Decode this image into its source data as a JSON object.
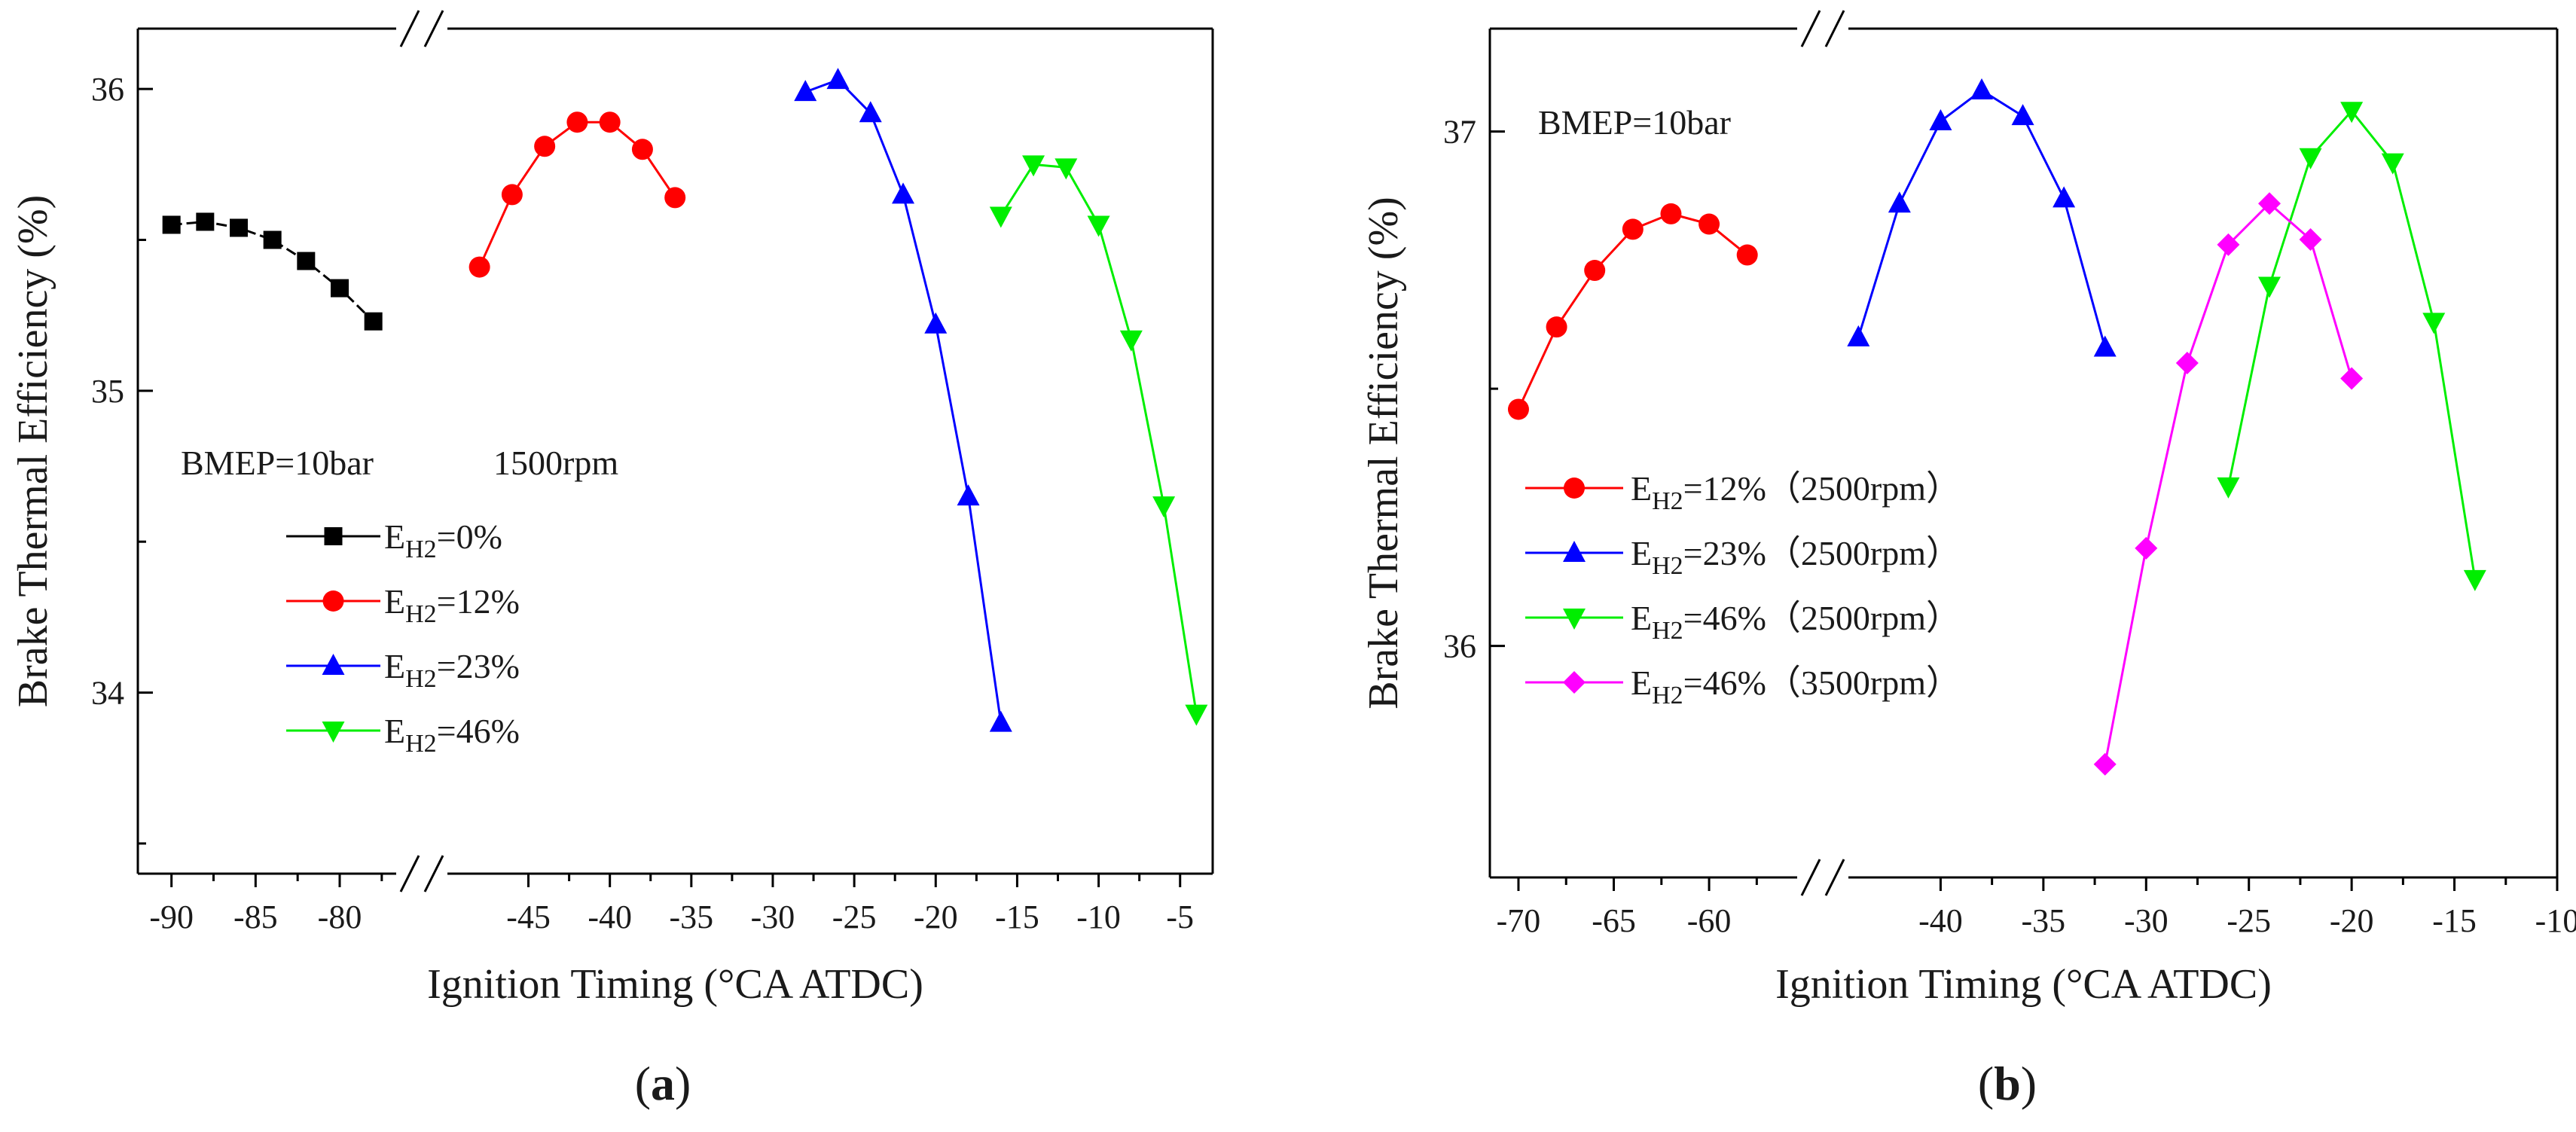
{
  "colors": {
    "black": "#000000",
    "red": "#ff0000",
    "blue": "#0000ff",
    "green": "#00ee00",
    "magenta": "#ff00ff"
  },
  "chart_data": [
    {
      "type": "line",
      "caption": "(a)",
      "caption_letter": "a",
      "xlabel": "Ignition Timing (°CA ATDC)",
      "ylabel": "Brake Thermal Efficiency (%)",
      "ylim": [
        33.4,
        36.2
      ],
      "yticks": [
        34,
        35,
        36
      ],
      "x_segments": [
        {
          "range": [
            -92,
            -77
          ],
          "ticks": [
            -90,
            -85,
            -80
          ]
        },
        {
          "range": [
            -49,
            -3
          ],
          "ticks": [
            -45,
            -40,
            -35,
            -30,
            -25,
            -20,
            -15,
            -10,
            -5
          ]
        }
      ],
      "annotations": {
        "bmep": "BMEP=10bar",
        "speed": "1500rpm"
      },
      "series": [
        {
          "name": "EH2=0%",
          "label_main": "E",
          "label_sub": "H2",
          "label_rest": "=0%",
          "color": "black",
          "marker": "square",
          "x": [
            -90,
            -88,
            -86,
            -84,
            -82,
            -80,
            -78
          ],
          "y": [
            35.55,
            35.56,
            35.54,
            35.5,
            35.43,
            35.34,
            35.23
          ]
        },
        {
          "name": "EH2=12%",
          "label_main": "E",
          "label_sub": "H2",
          "label_rest": "=12%",
          "color": "red",
          "marker": "circle",
          "x": [
            -48,
            -46,
            -44,
            -42,
            -40,
            -38,
            -36
          ],
          "y": [
            35.41,
            35.65,
            35.81,
            35.89,
            35.89,
            35.8,
            35.64
          ]
        },
        {
          "name": "EH2=23%",
          "label_main": "E",
          "label_sub": "H2",
          "label_rest": "=23%",
          "color": "blue",
          "marker": "triangle-up",
          "x": [
            -28,
            -26,
            -24,
            -22,
            -20,
            -18,
            -16
          ],
          "y": [
            35.99,
            36.03,
            35.92,
            35.65,
            35.22,
            34.65,
            33.9
          ]
        },
        {
          "name": "EH2=46%",
          "label_main": "E",
          "label_sub": "H2",
          "label_rest": "=46%",
          "color": "green",
          "marker": "triangle-down",
          "x": [
            -16,
            -14,
            -12,
            -10,
            -8,
            -6,
            -4
          ],
          "y": [
            35.58,
            35.75,
            35.74,
            35.55,
            35.17,
            34.62,
            33.93
          ]
        }
      ]
    },
    {
      "type": "line",
      "caption": "(b)",
      "caption_letter": "b",
      "xlabel": "Ignition Timing (°CA ATDC)",
      "ylabel": "Brake Thermal Efficiency (%)",
      "ylim": [
        35.55,
        37.2
      ],
      "yticks": [
        36,
        37
      ],
      "x_segments": [
        {
          "range": [
            -71.5,
            -57
          ],
          "ticks": [
            -70,
            -65,
            -60
          ]
        },
        {
          "range": [
            -45,
            -10
          ],
          "ticks": [
            -40,
            -35,
            -30,
            -25,
            -20,
            -15,
            -10
          ]
        }
      ],
      "annotations": {
        "bmep": "BMEP=10bar"
      },
      "series": [
        {
          "name": "EH2=12% (2500rpm)",
          "label_main": "E",
          "label_sub": "H2",
          "label_rest": "=12%（2500rpm）",
          "color": "red",
          "marker": "circle",
          "x": [
            -70,
            -68,
            -66,
            -64,
            -62,
            -60,
            -58
          ],
          "y": [
            36.46,
            36.62,
            36.73,
            36.81,
            36.84,
            36.82,
            36.76
          ]
        },
        {
          "name": "EH2=23% (2500rpm)",
          "label_main": "E",
          "label_sub": "H2",
          "label_rest": "=23%（2500rpm）",
          "color": "blue",
          "marker": "triangle-up",
          "x": [
            -44,
            -42,
            -40,
            -38,
            -36,
            -34,
            -32
          ],
          "y": [
            36.6,
            36.86,
            37.02,
            37.08,
            37.03,
            36.87,
            36.58
          ]
        },
        {
          "name": "EH2=46% (2500rpm)",
          "label_main": "E",
          "label_sub": "H2",
          "label_rest": "=46%（2500rpm）",
          "color": "green",
          "marker": "triangle-down",
          "x": [
            -26,
            -24,
            -22,
            -20,
            -18,
            -16,
            -14
          ],
          "y": [
            36.31,
            36.7,
            36.95,
            37.04,
            36.94,
            36.63,
            36.13
          ]
        },
        {
          "name": "EH2=46% (3500rpm)",
          "label_main": "E",
          "label_sub": "H2",
          "label_rest": "=46%（3500rpm）",
          "color": "magenta",
          "marker": "diamond",
          "x": [
            -32,
            -30,
            -28,
            -26,
            -24,
            -22,
            -20
          ],
          "y": [
            35.77,
            36.19,
            36.55,
            36.78,
            36.86,
            36.79,
            36.52
          ]
        }
      ]
    }
  ]
}
